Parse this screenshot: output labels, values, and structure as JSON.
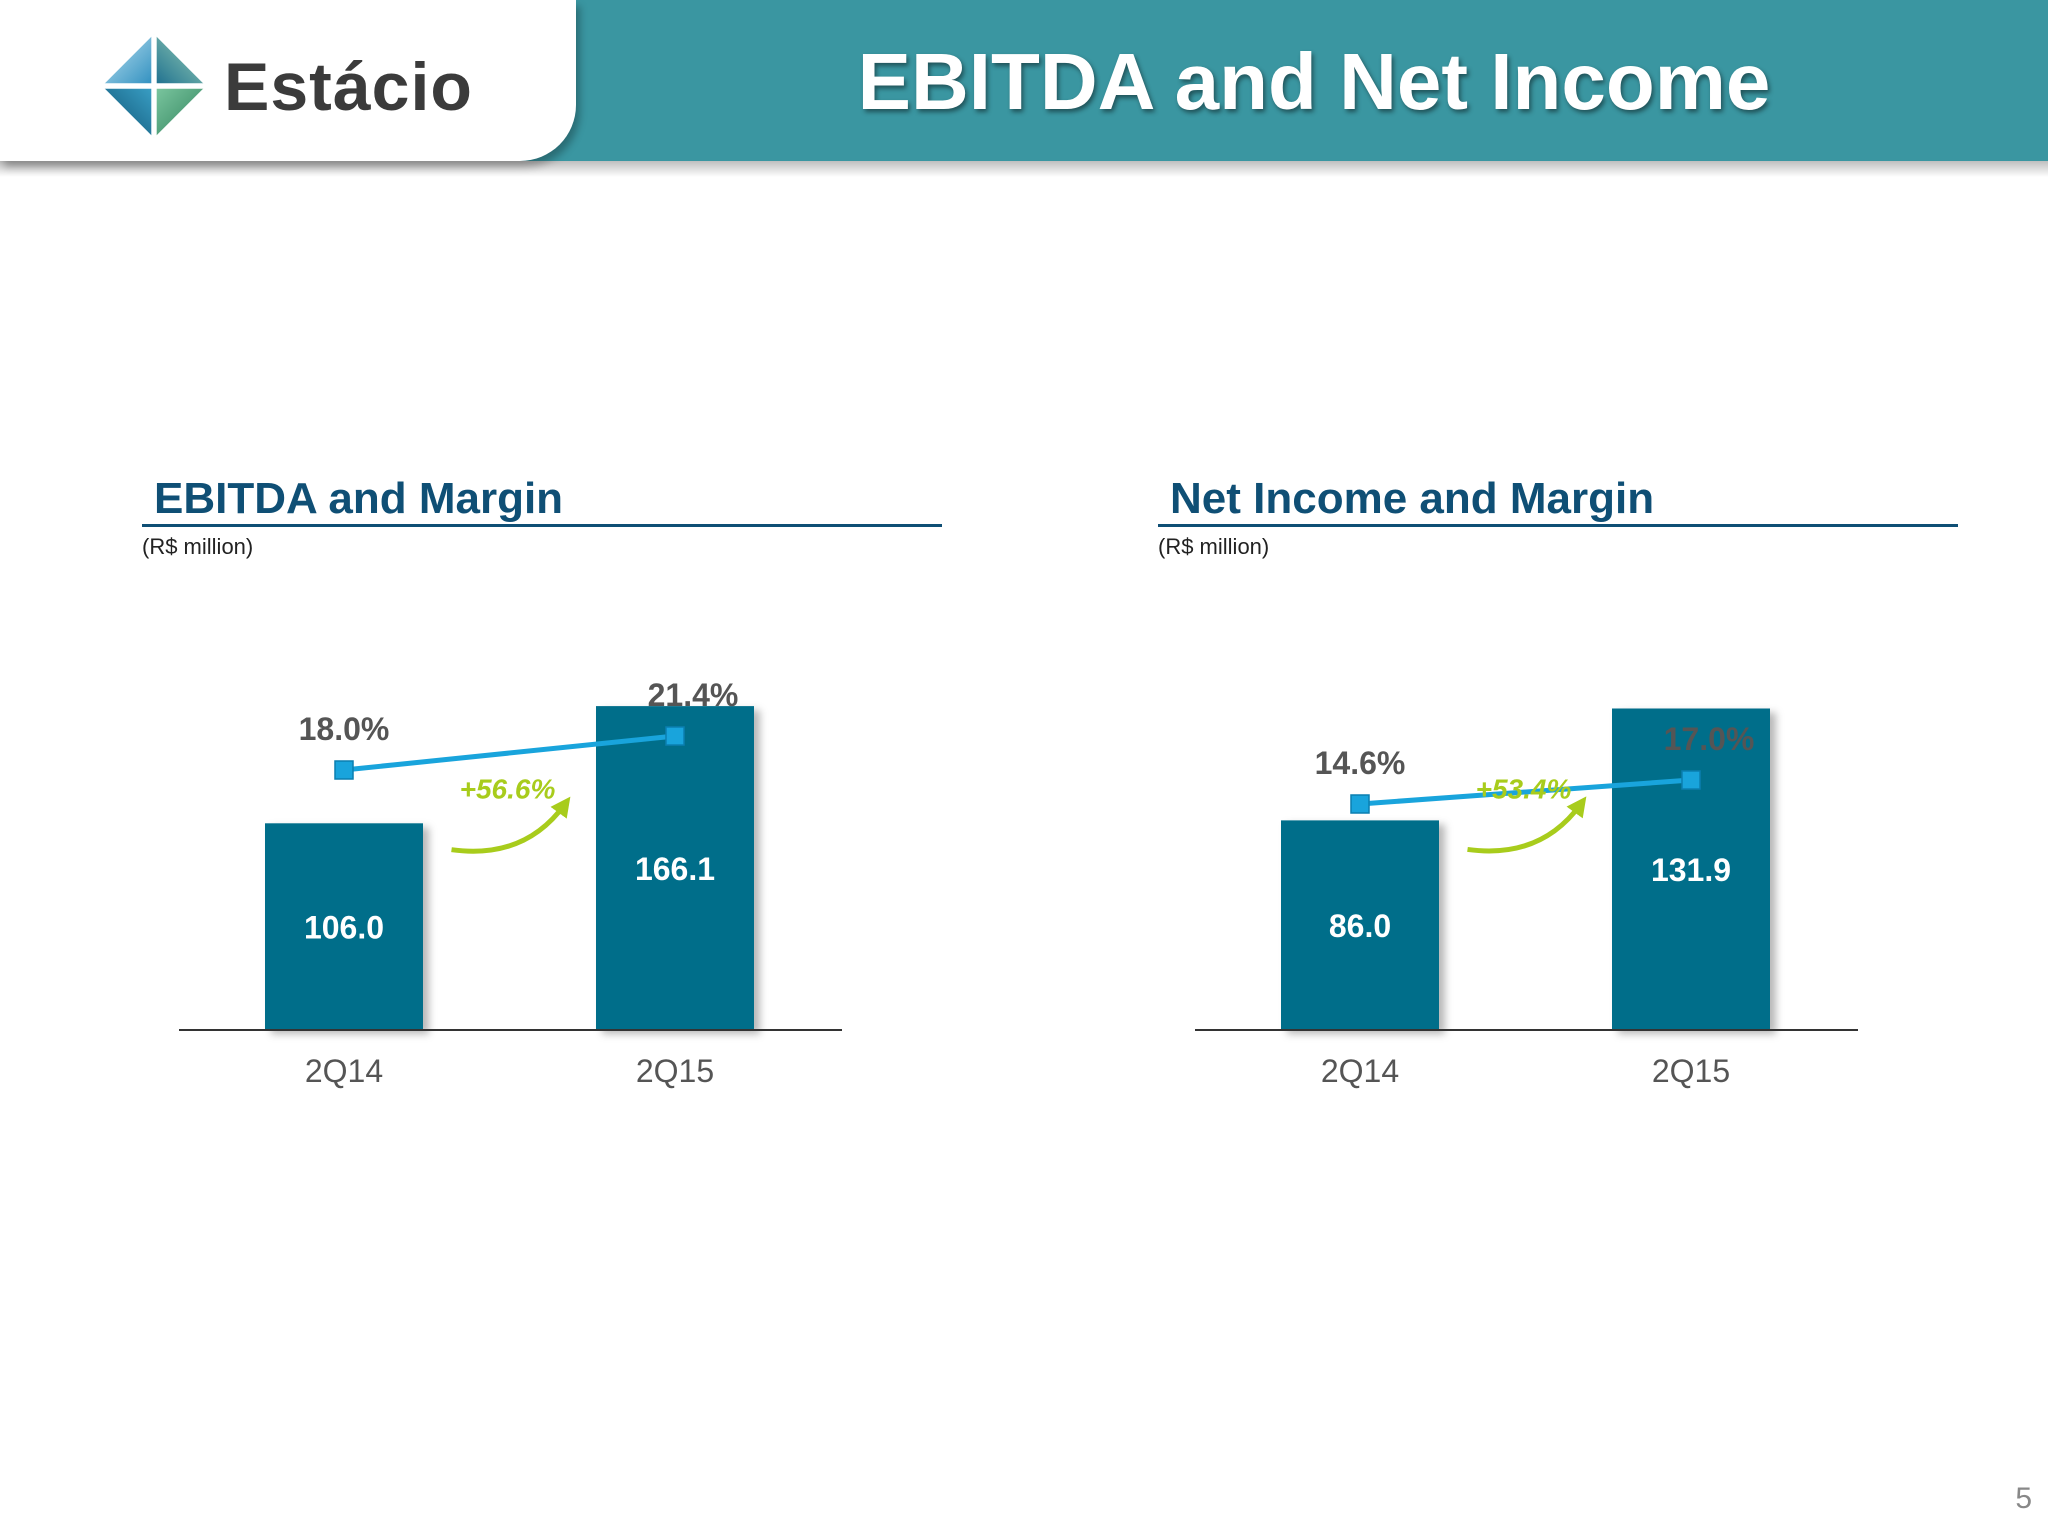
{
  "header": {
    "logo_text": "Estácio",
    "title": "EBITDA and Net Income"
  },
  "page_number": "5",
  "colors": {
    "header": "#3a96a1",
    "bar": "#046e8a",
    "line": "#19a4dc",
    "growth": "#a8cc1c",
    "title": "#0f4f75"
  },
  "chart_data": [
    {
      "type": "bar",
      "title": "EBITDA and Margin",
      "unit": "(R$ million)",
      "categories": [
        "2Q14",
        "2Q15"
      ],
      "values": [
        106.0,
        166.1
      ],
      "value_labels": [
        "106.0",
        "166.1"
      ],
      "line_values": [
        18.0,
        21.4
      ],
      "line_labels": [
        "18.0%",
        "21.4%"
      ],
      "growth_label": "+56.6%",
      "ylim": [
        0,
        200
      ]
    },
    {
      "type": "bar",
      "title": "Net Income and Margin",
      "unit": "(R$ million)",
      "categories": [
        "2Q14",
        "2Q15"
      ],
      "values": [
        86.0,
        131.9
      ],
      "value_labels": [
        "86.0",
        "131.9"
      ],
      "line_values": [
        14.6,
        17.0
      ],
      "line_labels": [
        "14.6%",
        "17.0%"
      ],
      "growth_label": "+53.4%",
      "ylim": [
        0,
        160
      ]
    }
  ]
}
